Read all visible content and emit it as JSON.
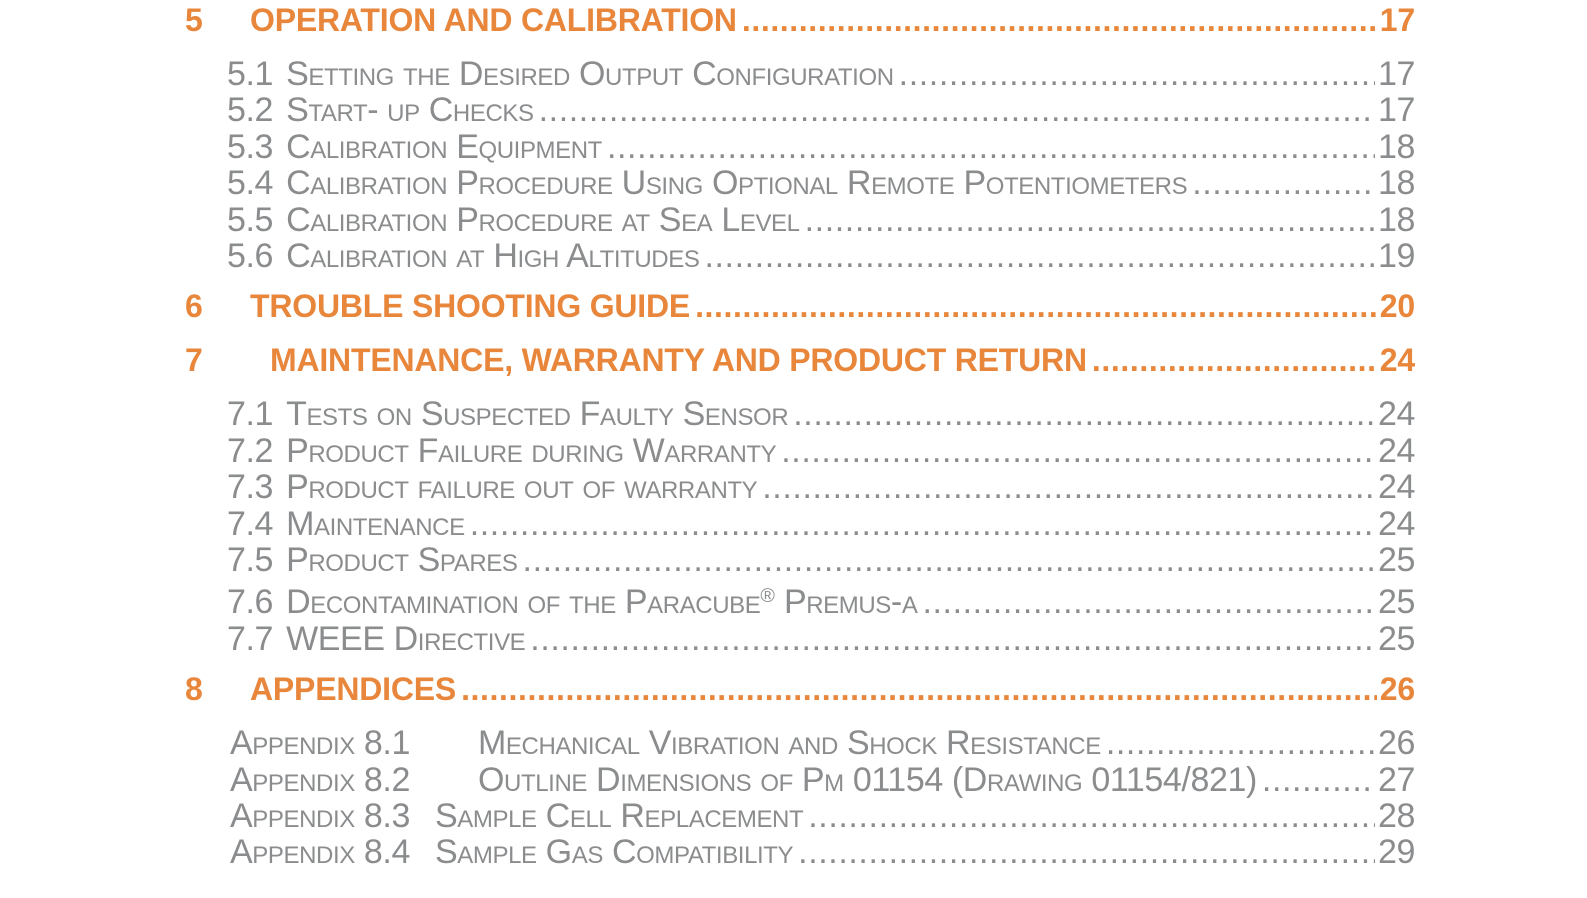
{
  "style": {
    "accent_color": "#E8863B",
    "text_color": "#8A8C8E",
    "background_color": "#FFFFFF"
  },
  "toc": {
    "rows": [
      {
        "kind": "section",
        "number": "5",
        "title": "OPERATION AND CALIBRATION",
        "page": "17"
      },
      {
        "kind": "item",
        "number": "5.1",
        "title": "Setting the Desired Output Configuration",
        "page": "17"
      },
      {
        "kind": "item",
        "number": "5.2",
        "title": "Start- up Checks",
        "page": "17"
      },
      {
        "kind": "item",
        "number": "5.3",
        "title": "Calibration Equipment",
        "page": "18"
      },
      {
        "kind": "item",
        "number": "5.4",
        "title": "Calibration Procedure Using Optional Remote Potentiometers",
        "page": "18"
      },
      {
        "kind": "item",
        "number": "5.5",
        "title": "Calibration Procedure at Sea Level",
        "page": "18"
      },
      {
        "kind": "item",
        "number": "5.6",
        "title": "Calibration at High Altitudes",
        "page": "19"
      },
      {
        "kind": "section",
        "number": "6",
        "title": "TROUBLE SHOOTING GUIDE",
        "page": "20"
      },
      {
        "kind": "section",
        "number": "7",
        "title": "MAINTENANCE, WARRANTY AND PRODUCT RETURN",
        "page": "24"
      },
      {
        "kind": "item",
        "number": "7.1",
        "title": "Tests on Suspected Faulty Sensor",
        "page": "24"
      },
      {
        "kind": "item",
        "number": "7.2",
        "title": "Product Failure during Warranty",
        "page": "24"
      },
      {
        "kind": "item",
        "number": "7.3",
        "title": "Product failure out of warranty",
        "page": "24"
      },
      {
        "kind": "item",
        "number": "7.4",
        "title": "Maintenance",
        "page": "24"
      },
      {
        "kind": "item",
        "number": "7.5",
        "title": "Product Spares",
        "page": "25"
      },
      {
        "kind": "item",
        "number": "7.6",
        "title": "Decontamination of the Paracube® Premus-a",
        "page": "25"
      },
      {
        "kind": "item",
        "number": "7.7",
        "title": "WEEE Directive",
        "page": "25"
      },
      {
        "kind": "section",
        "number": "8",
        "title": "APPENDICES",
        "page": "26"
      },
      {
        "kind": "appendix",
        "label": "Appendix 8.1",
        "title": "Mechanical Vibration and Shock Resistance",
        "page": "26"
      },
      {
        "kind": "appendix",
        "label": "Appendix 8.2",
        "title": "Outline Dimensions of Pm 01154 (Drawing 01154/821)",
        "page": "27"
      },
      {
        "kind": "appendix",
        "label": "Appendix 8.3",
        "title": "Sample Cell Replacement",
        "page": "28"
      },
      {
        "kind": "appendix",
        "label": "Appendix 8.4",
        "title": "Sample Gas Compatibility",
        "page": "29"
      }
    ]
  }
}
